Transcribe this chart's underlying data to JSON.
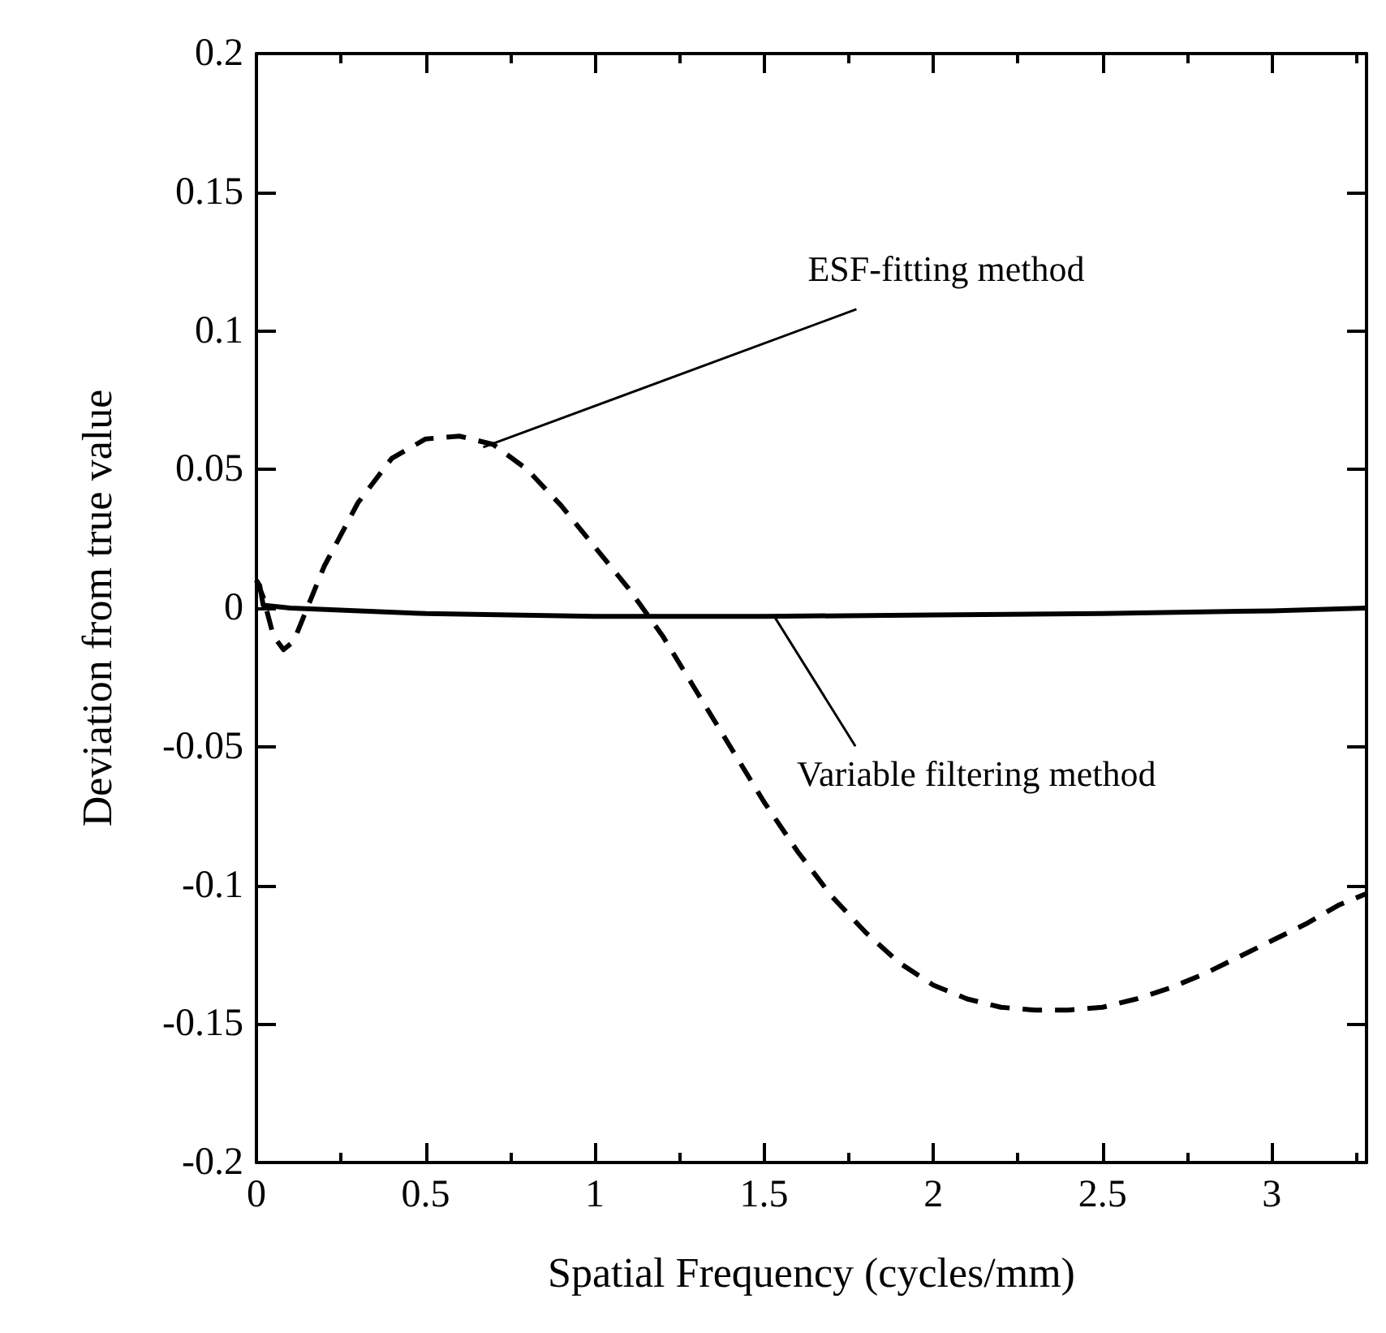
{
  "chart_data": {
    "type": "line",
    "xlabel": "Spatial Frequency (cycles/mm)",
    "ylabel": "Deviation from true value",
    "xlim": [
      0,
      3.28
    ],
    "xticks": [
      0,
      0.5,
      1,
      1.5,
      2,
      2.5,
      3
    ],
    "ylim": [
      -0.2,
      0.2
    ],
    "yticks": [
      -0.2,
      -0.15,
      -0.1,
      -0.05,
      0,
      0.05,
      0.1,
      0.15,
      0.2
    ],
    "grid": false,
    "marker": "none",
    "series": [
      {
        "color": "#000000",
        "line_style": "dashed",
        "x": [
          0,
          0.02,
          0.05,
          0.08,
          0.11,
          0.15,
          0.2,
          0.3,
          0.4,
          0.5,
          0.6,
          0.7,
          0.8,
          0.9,
          1.0,
          1.1,
          1.2,
          1.3,
          1.4,
          1.5,
          1.6,
          1.7,
          1.8,
          1.9,
          2.0,
          2.1,
          2.2,
          2.3,
          2.4,
          2.5,
          2.6,
          2.7,
          2.8,
          2.9,
          3.0,
          3.1,
          3.2,
          3.28
        ],
        "values": [
          0.01,
          0.004,
          -0.01,
          -0.015,
          -0.012,
          0.0,
          0.015,
          0.038,
          0.054,
          0.061,
          0.062,
          0.059,
          0.05,
          0.037,
          0.022,
          0.007,
          -0.01,
          -0.03,
          -0.05,
          -0.07,
          -0.088,
          -0.104,
          -0.117,
          -0.128,
          -0.136,
          -0.141,
          -0.144,
          -0.145,
          -0.145,
          -0.144,
          -0.141,
          -0.137,
          -0.132,
          -0.126,
          -0.12,
          -0.114,
          -0.107,
          -0.103
        ]
      },
      {
        "color": "#000000",
        "line_style": "solid",
        "x": [
          0,
          0.01,
          0.02,
          0.1,
          0.5,
          1.0,
          1.5,
          2.0,
          2.5,
          3.0,
          3.28
        ],
        "values": [
          0.01,
          0.008,
          0.001,
          0,
          -0.002,
          -0.003,
          -0.003,
          -0.0025,
          -0.002,
          -0.001,
          0
        ]
      }
    ],
    "annotations": [
      {
        "text": "ESF-fitting method",
        "x": 0.67,
        "y": 0.058
      },
      {
        "text": "Variable filtering method",
        "x": 1.53,
        "y": -0.003
      }
    ]
  }
}
